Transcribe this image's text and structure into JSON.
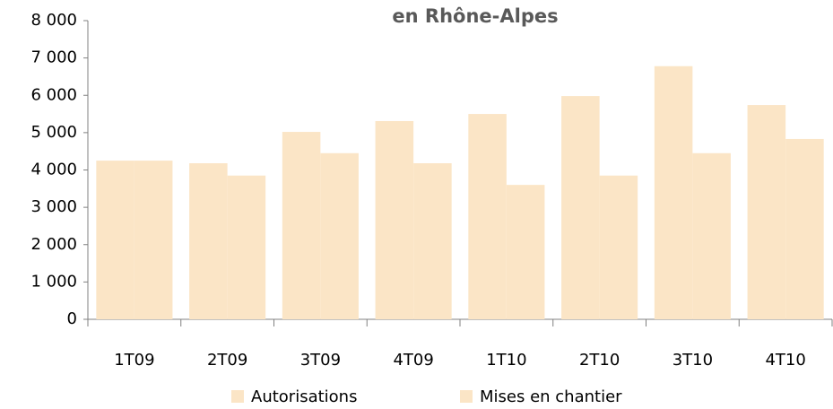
{
  "chart_data": {
    "type": "bar",
    "title": "en Rhône-Alpes",
    "categories": [
      "1T09",
      "2T09",
      "3T09",
      "4T09",
      "1T10",
      "2T10",
      "3T10",
      "4T10"
    ],
    "series": [
      {
        "name": "Autorisations",
        "color": "#fbe5c6",
        "values": [
          4250,
          4180,
          5020,
          5310,
          5500,
          5980,
          6780,
          5740
        ]
      },
      {
        "name": "Mises en chantier",
        "color": "#fbe5c6",
        "values": [
          4250,
          3850,
          4450,
          4180,
          3600,
          3850,
          4450,
          4830
        ]
      }
    ],
    "ylim": [
      0,
      8000
    ],
    "yticks": [
      0,
      {
        "value": 1000,
        "label": "1 000"
      },
      {
        "value": 2000,
        "label": "2 000"
      },
      {
        "value": 3000,
        "label": "3 000"
      },
      {
        "value": 4000,
        "label": "4 000"
      },
      {
        "value": 5000,
        "label": "5 000"
      },
      {
        "value": 6000,
        "label": "6 000"
      },
      {
        "value": 7000,
        "label": "7 000"
      },
      {
        "value": 8000,
        "label": "8 000"
      }
    ],
    "grid": false,
    "legend": "bottom"
  }
}
